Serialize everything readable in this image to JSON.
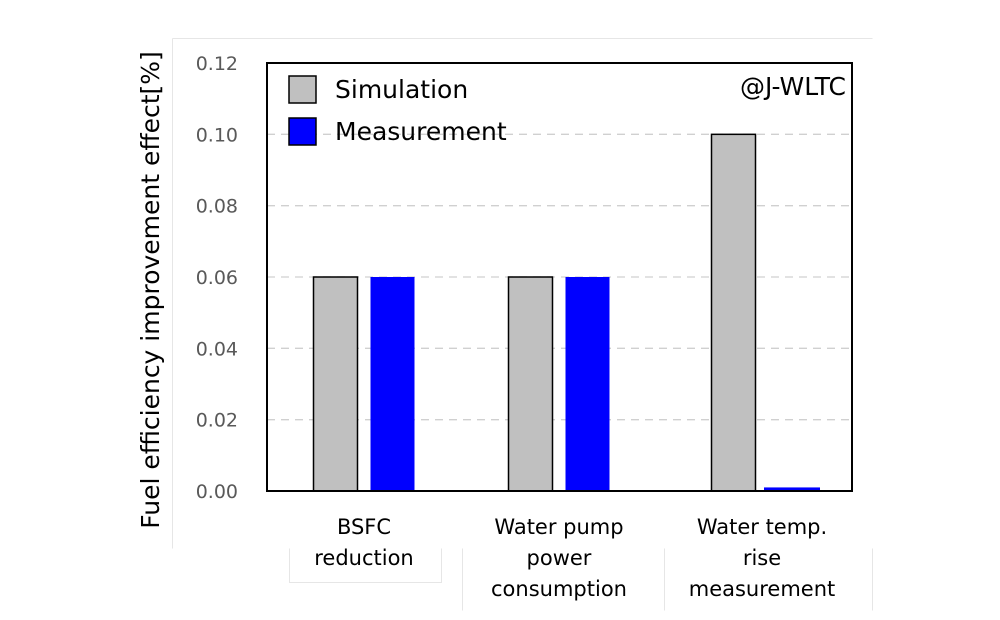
{
  "chart_data": {
    "type": "bar",
    "title": "",
    "annotation": "@J-WLTC",
    "xlabel": "",
    "ylabel": "Fuel efficiency improvement effect[%]",
    "ylim": [
      0,
      0.12
    ],
    "yticks": [
      "0.00",
      "0.02",
      "0.04",
      "0.06",
      "0.08",
      "0.10",
      "0.12"
    ],
    "ytick_values": [
      0,
      0.02,
      0.04,
      0.06,
      0.08,
      0.1,
      0.12
    ],
    "grid": true,
    "legend_position": "top-left",
    "categories": [
      [
        "BSFC",
        "reduction"
      ],
      [
        "Water pump",
        "power",
        "consumption"
      ],
      [
        "Water temp.",
        "rise",
        "measurement"
      ]
    ],
    "series": [
      {
        "name": "Simulation",
        "color": "#c0c0c0",
        "values": [
          0.06,
          0.06,
          0.1
        ]
      },
      {
        "name": "Measurement",
        "color": "#0000ff",
        "values": [
          0.06,
          0.06,
          0.001
        ]
      }
    ]
  }
}
